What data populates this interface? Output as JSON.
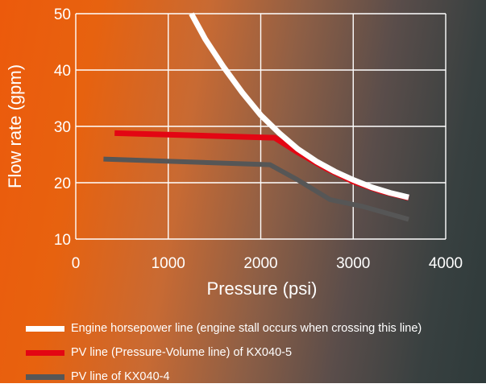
{
  "chart_data": {
    "type": "line",
    "xlabel": "Pressure (psi)",
    "ylabel": "Flow rate (gpm)",
    "xlim": [
      0,
      4000
    ],
    "ylim": [
      10,
      50
    ],
    "xticks": [
      0,
      1000,
      2000,
      3000,
      4000
    ],
    "yticks": [
      10,
      20,
      30,
      40,
      50
    ],
    "grid": true,
    "legend_position": "bottom",
    "series": [
      {
        "name": "Engine horsepower line (engine stall occurs when crossing this line)",
        "color": "#ffffff",
        "x": [
          1250,
          1400,
          1600,
          1800,
          2000,
          2200,
          2400,
          2600,
          2800,
          3000,
          3200,
          3400,
          3600
        ],
        "y": [
          50,
          45.5,
          40.5,
          36,
          32,
          28.8,
          26,
          23.8,
          22,
          20.5,
          19.2,
          18.2,
          17.4
        ]
      },
      {
        "name": "PV line (Pressure-Volume line) of KX040-5",
        "color": "#e30613",
        "x": [
          420,
          2100,
          2150,
          2400,
          2700,
          3000,
          3300,
          3600
        ],
        "y": [
          28.8,
          28,
          28,
          25.4,
          22.6,
          20.2,
          18.5,
          17.3
        ]
      },
      {
        "name": "PV line of KX040-4",
        "color": "#565656",
        "x": [
          300,
          2100,
          2400,
          2750,
          3100,
          3600
        ],
        "y": [
          24.2,
          23.2,
          20.5,
          17,
          15.8,
          13.5
        ]
      }
    ]
  }
}
